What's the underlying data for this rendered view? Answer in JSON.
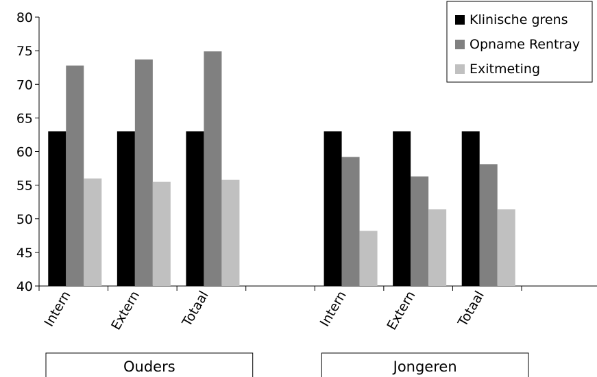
{
  "chart_data": {
    "type": "bar",
    "title": "",
    "xlabel": "",
    "ylabel": "",
    "ylim": [
      40,
      80
    ],
    "yticks": [
      40,
      45,
      50,
      55,
      60,
      65,
      70,
      75,
      80
    ],
    "grid": false,
    "legend_position": "top-right",
    "categories": [
      "Intern",
      "Extern",
      "Totaal",
      "",
      "Intern",
      "Extern",
      "Totaal"
    ],
    "groups": [
      {
        "label": "Ouders",
        "categories": [
          "Intern",
          "Extern",
          "Totaal"
        ]
      },
      {
        "label": "Jongeren",
        "categories": [
          "Intern",
          "Extern",
          "Totaal"
        ]
      }
    ],
    "series": [
      {
        "name": "Klinische grens",
        "color": "#000000",
        "values": [
          63,
          63,
          63,
          null,
          63,
          63,
          63
        ]
      },
      {
        "name": "Opname Rentray",
        "color": "#808080",
        "values": [
          72.8,
          73.7,
          74.9,
          null,
          59.2,
          56.3,
          58.1
        ]
      },
      {
        "name": "Exitmeting",
        "color": "#c0c0c0",
        "values": [
          56,
          55.5,
          55.8,
          null,
          48.2,
          51.4,
          51.4
        ]
      }
    ]
  }
}
